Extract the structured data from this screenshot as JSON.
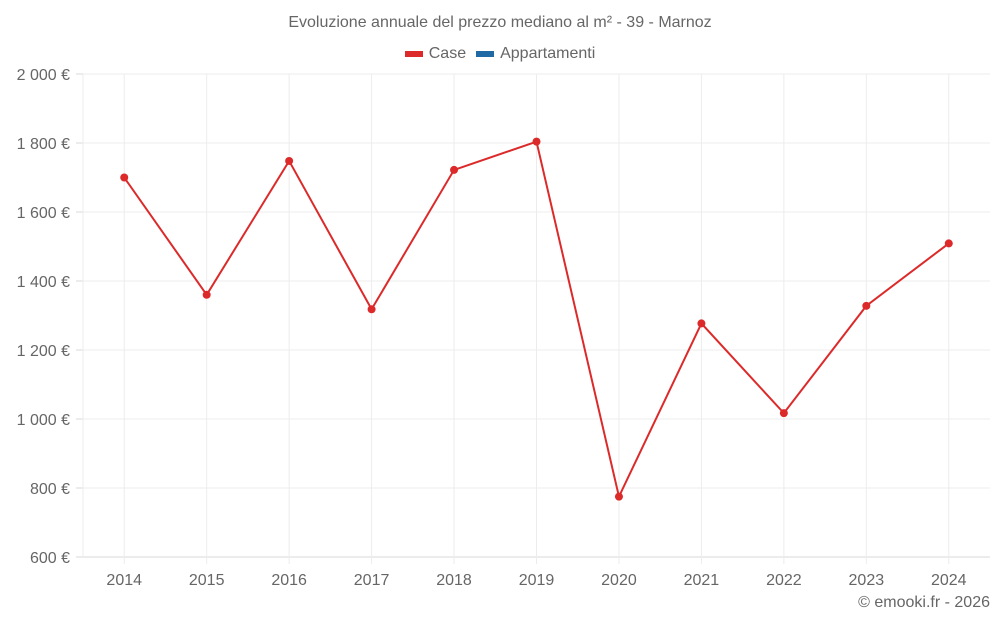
{
  "chart_data": {
    "type": "line",
    "title": "Evoluzione annuale del prezzo mediano al m² - 39 - Marnoz",
    "xlabel": "",
    "ylabel": "",
    "categories": [
      "2014",
      "2015",
      "2016",
      "2017",
      "2018",
      "2019",
      "2020",
      "2021",
      "2022",
      "2023",
      "2024"
    ],
    "series": [
      {
        "name": "Case",
        "color": "#dc2a2a",
        "values": [
          1700,
          1360,
          1748,
          1318,
          1722,
          1804,
          775,
          1277,
          1017,
          1328,
          1509
        ]
      },
      {
        "name": "Appartamenti",
        "color": "#1f6aa5",
        "values": []
      }
    ],
    "ylim": [
      600,
      2000
    ],
    "yticks": [
      600,
      800,
      1000,
      1200,
      1400,
      1600,
      1800,
      2000
    ],
    "ytick_labels": [
      "600 €",
      "800 €",
      "1 000 €",
      "1 200 €",
      "1 400 €",
      "1 600 €",
      "1 800 €",
      "2 000 €"
    ],
    "grid": true,
    "legend_position": "top"
  },
  "header": {
    "title": "Evoluzione annuale del prezzo mediano al m² - 39 - Marnoz"
  },
  "legend": [
    {
      "label": "Case",
      "color": "#dc2a2a"
    },
    {
      "label": "Appartamenti",
      "color": "#1f6aa5"
    }
  ],
  "footer": {
    "credit": "© emooki.fr - 2026"
  }
}
